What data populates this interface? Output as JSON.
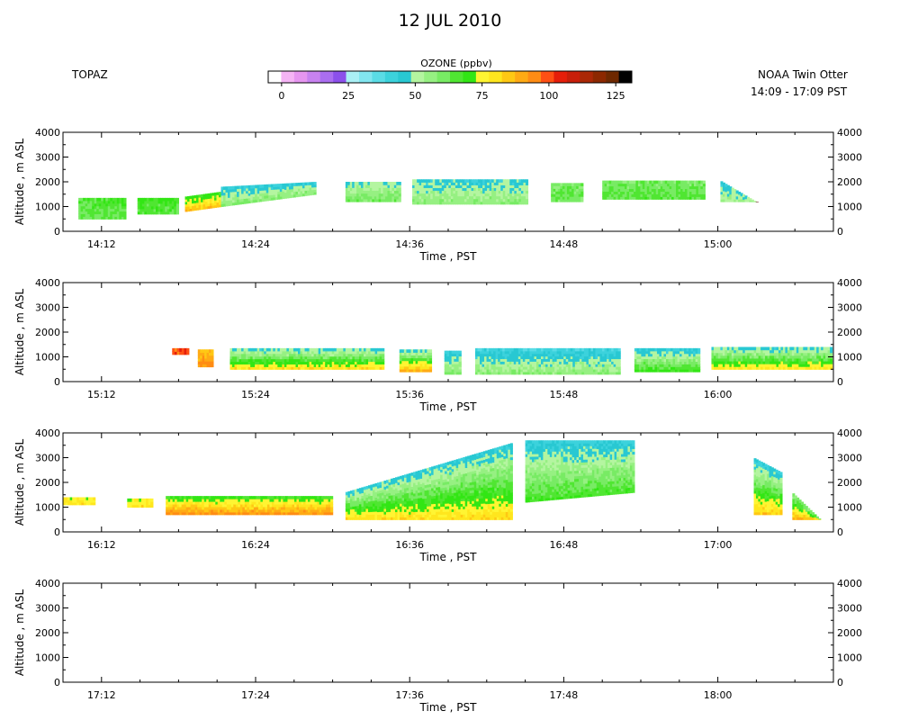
{
  "title": "12 JUL 2010",
  "instrument": "TOPAZ",
  "platform": "NOAA Twin Otter",
  "time_range": "14:09 - 17:09 PST",
  "colorbar": {
    "label": "OZONE (ppbv)",
    "ticks": [
      0,
      25,
      50,
      75,
      100,
      125
    ],
    "colors": [
      "#ffffff",
      "#f5b4f5",
      "#e696f0",
      "#c882f0",
      "#aa6ef0",
      "#8c50eb",
      "#aaf0f5",
      "#82e6f0",
      "#5adce6",
      "#3cd2dc",
      "#28c8d2",
      "#b4f5a0",
      "#96f082",
      "#78eb64",
      "#50e632",
      "#32e614",
      "#fff532",
      "#ffe61e",
      "#ffc814",
      "#ffaa14",
      "#ff8c14",
      "#ff5014",
      "#e61e0a",
      "#c81e0a",
      "#aa2806",
      "#8c2800",
      "#6e2800",
      "#000000"
    ],
    "range": [
      -5,
      131
    ]
  },
  "panel_common": {
    "ylabel": "Altitude , m ASL",
    "xlabel": "Time , PST",
    "yticks": [
      0,
      1000,
      2000,
      3000,
      4000
    ],
    "ylim": [
      0,
      4000
    ]
  },
  "chart_data": [
    {
      "type": "heatmap",
      "panel": 1,
      "xlim": [
        "14:09",
        "15:09"
      ],
      "xticks": [
        "14:12",
        "14:24",
        "14:36",
        "14:48",
        "15:00"
      ],
      "segments": [
        {
          "start": "14:10.2",
          "end": "14:13.9",
          "alt_bottom": [
            500,
            500
          ],
          "alt_top": [
            1350,
            1350
          ],
          "ozone_low": 62,
          "ozone_high": 66
        },
        {
          "start": "14:14.8",
          "end": "14:18.0",
          "alt_bottom": [
            700,
            700
          ],
          "alt_top": [
            1350,
            1350
          ],
          "ozone_low": 64,
          "ozone_high": 68
        },
        {
          "start": "14:18.5",
          "end": "14:21.3",
          "alt_bottom": [
            800,
            1000
          ],
          "alt_top": [
            1400,
            1600
          ],
          "ozone_low": 88,
          "ozone_high": 66
        },
        {
          "start": "14:21.3",
          "end": "14:28.7",
          "alt_bottom": [
            1000,
            1500
          ],
          "alt_top": [
            1800,
            2000
          ],
          "ozone_low": 60,
          "ozone_high": 42
        },
        {
          "start": "14:31.0",
          "end": "14:35.3",
          "alt_bottom": [
            1200,
            1200
          ],
          "alt_top": [
            2000,
            2000
          ],
          "ozone_low": 62,
          "ozone_high": 48
        },
        {
          "start": "14:36.2",
          "end": "14:45.2",
          "alt_bottom": [
            1100,
            1100
          ],
          "alt_top": [
            2100,
            2100
          ],
          "ozone_low": 58,
          "ozone_high": 45
        },
        {
          "start": "14:47.0",
          "end": "14:49.5",
          "alt_bottom": [
            1200,
            1200
          ],
          "alt_top": [
            1950,
            1950
          ],
          "ozone_low": 62,
          "ozone_high": 60
        },
        {
          "start": "14:51.0",
          "end": "14:59.0",
          "alt_bottom": [
            1300,
            1300
          ],
          "alt_top": [
            2050,
            2050
          ],
          "ozone_low": 65,
          "ozone_high": 60
        },
        {
          "start": "15:00.2",
          "end": "15:03.3",
          "alt_bottom": [
            1200,
            1200
          ],
          "alt_top": [
            2050,
            1100
          ],
          "ozone_low": 55,
          "ozone_high": 45
        }
      ]
    },
    {
      "type": "heatmap",
      "panel": 2,
      "xlim": [
        "15:09",
        "16:09"
      ],
      "xticks": [
        "15:12",
        "15:24",
        "15:36",
        "15:48",
        "16:00"
      ],
      "segments": [
        {
          "start": "15:17.5",
          "end": "15:18.8",
          "alt_bottom": [
            1100,
            1100
          ],
          "alt_top": [
            1350,
            1350
          ],
          "ozone_low": 100,
          "ozone_high": 100
        },
        {
          "start": "15:19.5",
          "end": "15:20.7",
          "alt_bottom": [
            600,
            600
          ],
          "alt_top": [
            1300,
            1300
          ],
          "ozone_low": 95,
          "ozone_high": 85
        },
        {
          "start": "15:22.0",
          "end": "15:34.0",
          "alt_bottom": [
            500,
            500
          ],
          "alt_top": [
            1350,
            1350
          ],
          "ozone_low": 82,
          "ozone_high": 45
        },
        {
          "start": "15:35.2",
          "end": "15:37.7",
          "alt_bottom": [
            400,
            400
          ],
          "alt_top": [
            1300,
            1300
          ],
          "ozone_low": 92,
          "ozone_high": 45
        },
        {
          "start": "15:38.7",
          "end": "15:40.0",
          "alt_bottom": [
            300,
            300
          ],
          "alt_top": [
            1250,
            1250
          ],
          "ozone_low": 60,
          "ozone_high": 42
        },
        {
          "start": "15:41.1",
          "end": "15:52.4",
          "alt_bottom": [
            300,
            300
          ],
          "alt_top": [
            1350,
            1350
          ],
          "ozone_low": 58,
          "ozone_high": 40
        },
        {
          "start": "15:53.5",
          "end": "15:58.6",
          "alt_bottom": [
            400,
            400
          ],
          "alt_top": [
            1350,
            1350
          ],
          "ozone_low": 70,
          "ozone_high": 42
        },
        {
          "start": "15:59.5",
          "end": "16:08.9",
          "alt_bottom": [
            500,
            500
          ],
          "alt_top": [
            1400,
            1400
          ],
          "ozone_low": 80,
          "ozone_high": 45
        }
      ]
    },
    {
      "type": "heatmap",
      "panel": 3,
      "xlim": [
        "16:09",
        "17:09"
      ],
      "xticks": [
        "16:12",
        "16:24",
        "16:36",
        "16:48",
        "17:00"
      ],
      "segments": [
        {
          "start": "16:09.0",
          "end": "16:11.5",
          "alt_bottom": [
            1100,
            1100
          ],
          "alt_top": [
            1400,
            1400
          ],
          "ozone_low": 80,
          "ozone_high": 75
        },
        {
          "start": "16:14.0",
          "end": "16:16.0",
          "alt_bottom": [
            1000,
            1000
          ],
          "alt_top": [
            1350,
            1350
          ],
          "ozone_low": 80,
          "ozone_high": 74
        },
        {
          "start": "16:17.0",
          "end": "16:30.0",
          "alt_bottom": [
            700,
            700
          ],
          "alt_top": [
            1450,
            1450
          ],
          "ozone_low": 95,
          "ozone_high": 66
        },
        {
          "start": "16:31.0",
          "end": "16:44.0",
          "alt_bottom": [
            500,
            500
          ],
          "alt_top": [
            1600,
            3600
          ],
          "ozone_low": 82,
          "ozone_high": 44
        },
        {
          "start": "16:45.0",
          "end": "16:53.5",
          "alt_bottom": [
            1200,
            1600
          ],
          "alt_top": [
            3700,
            3700
          ],
          "ozone_low": 68,
          "ozone_high": 42
        },
        {
          "start": "17:02.8",
          "end": "17:05.0",
          "alt_bottom": [
            700,
            700
          ],
          "alt_top": [
            3000,
            2400
          ],
          "ozone_low": 85,
          "ozone_high": 42
        },
        {
          "start": "17:05.8",
          "end": "17:08.0",
          "alt_bottom": [
            500,
            500
          ],
          "alt_top": [
            1600,
            500
          ],
          "ozone_low": 90,
          "ozone_high": 55
        }
      ]
    },
    {
      "type": "heatmap",
      "panel": 4,
      "xlim": [
        "17:09",
        "18:09"
      ],
      "xticks": [
        "17:12",
        "17:24",
        "17:36",
        "17:48",
        "18:00"
      ],
      "segments": []
    }
  ]
}
